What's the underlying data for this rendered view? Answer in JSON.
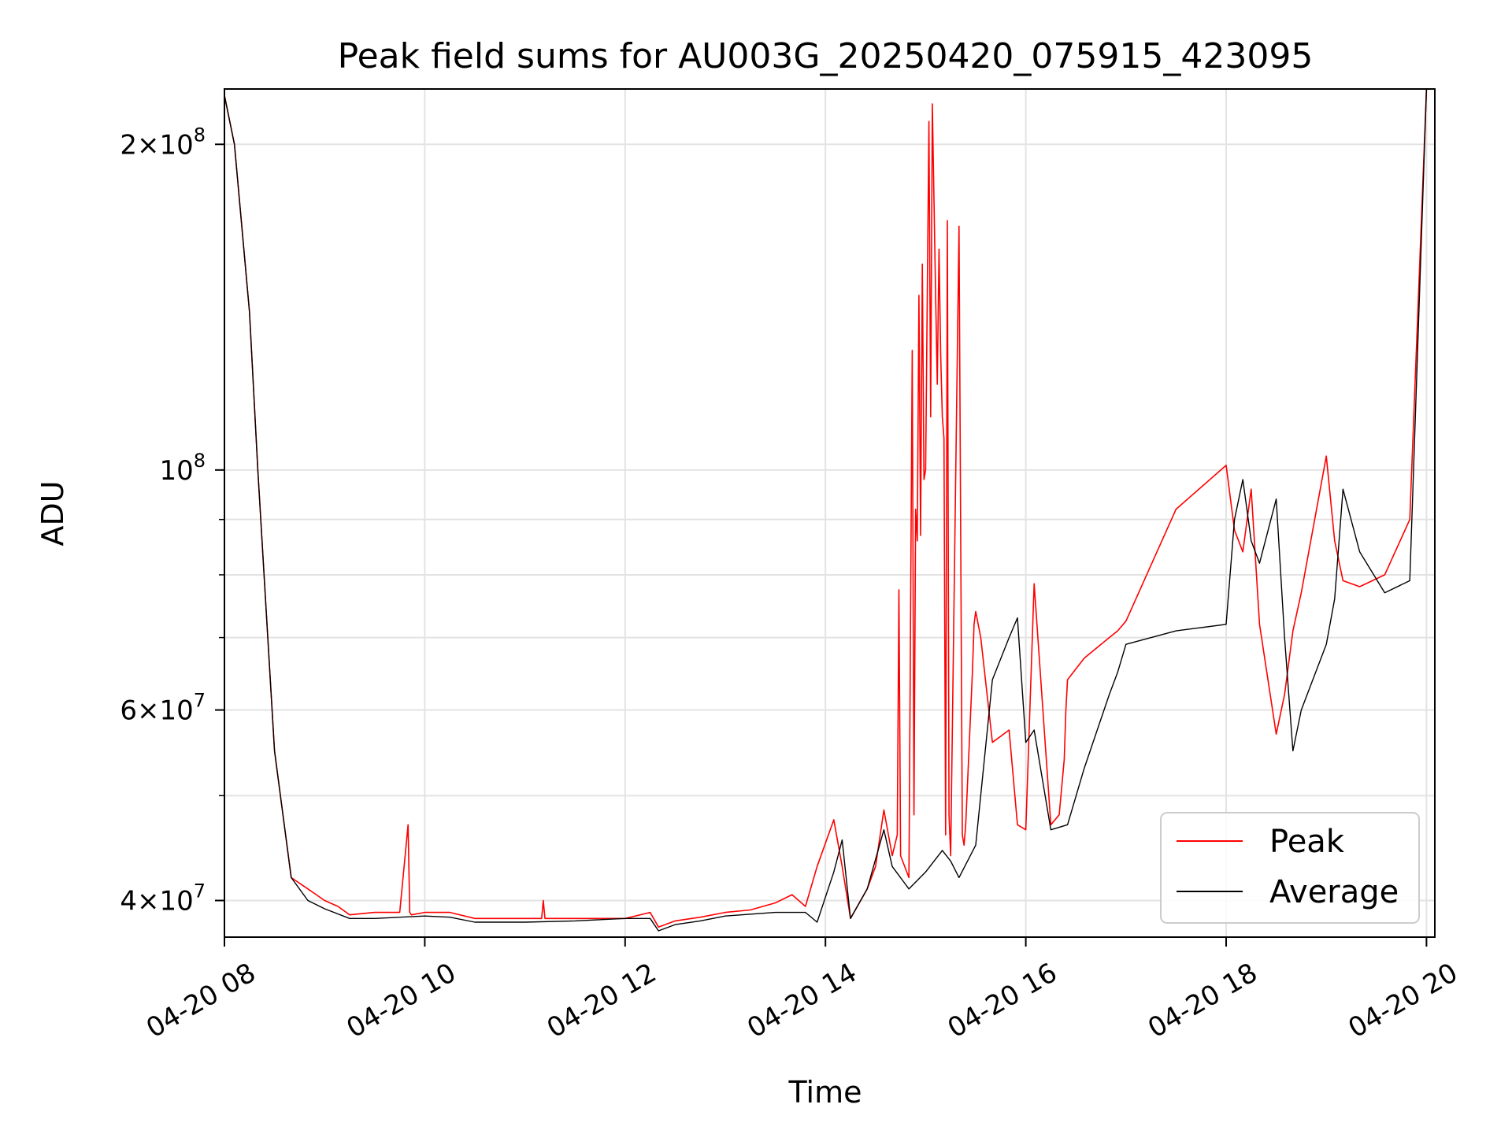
{
  "chart_data": {
    "type": "line",
    "title": "Peak field sums for AU003G_20250420_075915_423095",
    "xlabel": "Time",
    "ylabel": "ADU",
    "x_scale": "time",
    "y_scale": "log",
    "xlim": [
      "2025-04-20 08:00",
      "2025-04-20 20:05"
    ],
    "ylim": [
      37000000,
      225000000
    ],
    "grid": true,
    "legend_position": "lower right",
    "x_ticks": [
      {
        "value": "2025-04-20 08:00",
        "label": "04-20 08"
      },
      {
        "value": "2025-04-20 10:00",
        "label": "04-20 10"
      },
      {
        "value": "2025-04-20 12:00",
        "label": "04-20 12"
      },
      {
        "value": "2025-04-20 14:00",
        "label": "04-20 14"
      },
      {
        "value": "2025-04-20 16:00",
        "label": "04-20 16"
      },
      {
        "value": "2025-04-20 18:00",
        "label": "04-20 18"
      },
      {
        "value": "2025-04-20 20:00",
        "label": "04-20 20"
      }
    ],
    "y_major_ticks": [
      {
        "value": 40000000,
        "mantissa": "4",
        "exponent": "7"
      },
      {
        "value": 60000000,
        "mantissa": "6",
        "exponent": "7"
      },
      {
        "value": 100000000,
        "mantissa": "",
        "exponent": "8"
      },
      {
        "value": 200000000,
        "mantissa": "2",
        "exponent": "8"
      }
    ],
    "y_minor_ticks": [
      50000000,
      70000000,
      80000000,
      90000000
    ],
    "series": [
      {
        "name": "Peak",
        "color": "#ff0000",
        "x": [
          "2025-04-20 08:00",
          "2025-04-20 08:06",
          "2025-04-20 08:15",
          "2025-04-20 08:20",
          "2025-04-20 08:30",
          "2025-04-20 08:40",
          "2025-04-20 08:50",
          "2025-04-20 08:55",
          "2025-04-20 09:00",
          "2025-04-20 09:08",
          "2025-04-20 09:15",
          "2025-04-20 09:30",
          "2025-04-20 09:45",
          "2025-04-20 09:50",
          "2025-04-20 09:51",
          "2025-04-20 09:52",
          "2025-04-20 10:00",
          "2025-04-20 10:15",
          "2025-04-20 10:30",
          "2025-04-20 11:00",
          "2025-04-20 11:10",
          "2025-04-20 11:11",
          "2025-04-20 11:12",
          "2025-04-20 11:30",
          "2025-04-20 12:00",
          "2025-04-20 12:15",
          "2025-04-20 12:20",
          "2025-04-20 12:30",
          "2025-04-20 12:45",
          "2025-04-20 13:00",
          "2025-04-20 13:15",
          "2025-04-20 13:30",
          "2025-04-20 13:40",
          "2025-04-20 13:48",
          "2025-04-20 13:55",
          "2025-04-20 14:05",
          "2025-04-20 14:10",
          "2025-04-20 14:15",
          "2025-04-20 14:25",
          "2025-04-20 14:30",
          "2025-04-20 14:35",
          "2025-04-20 14:40",
          "2025-04-20 14:43",
          "2025-04-20 14:44",
          "2025-04-20 14:45",
          "2025-04-20 14:50",
          "2025-04-20 14:52",
          "2025-04-20 14:53",
          "2025-04-20 14:54",
          "2025-04-20 14:55",
          "2025-04-20 14:56",
          "2025-04-20 14:57",
          "2025-04-20 14:58",
          "2025-04-20 14:59",
          "2025-04-20 15:00",
          "2025-04-20 15:02",
          "2025-04-20 15:03",
          "2025-04-20 15:04",
          "2025-04-20 15:06",
          "2025-04-20 15:07",
          "2025-04-20 15:08",
          "2025-04-20 15:09",
          "2025-04-20 15:10",
          "2025-04-20 15:11",
          "2025-04-20 15:12",
          "2025-04-20 15:13",
          "2025-04-20 15:14",
          "2025-04-20 15:15",
          "2025-04-20 15:20",
          "2025-04-20 15:22",
          "2025-04-20 15:23",
          "2025-04-20 15:24",
          "2025-04-20 15:28",
          "2025-04-20 15:29",
          "2025-04-20 15:30",
          "2025-04-20 15:33",
          "2025-04-20 15:40",
          "2025-04-20 15:50",
          "2025-04-20 15:55",
          "2025-04-20 16:00",
          "2025-04-20 16:05",
          "2025-04-20 16:15",
          "2025-04-20 16:20",
          "2025-04-20 16:23",
          "2025-04-20 16:24",
          "2025-04-20 16:25",
          "2025-04-20 16:35",
          "2025-04-20 16:50",
          "2025-04-20 16:55",
          "2025-04-20 17:00",
          "2025-04-20 17:30",
          "2025-04-20 18:00",
          "2025-04-20 18:05",
          "2025-04-20 18:10",
          "2025-04-20 18:15",
          "2025-04-20 18:20",
          "2025-04-20 18:30",
          "2025-04-20 18:35",
          "2025-04-20 18:40",
          "2025-04-20 18:45",
          "2025-04-20 19:00",
          "2025-04-20 19:05",
          "2025-04-20 19:10",
          "2025-04-20 19:20",
          "2025-04-20 19:35",
          "2025-04-20 19:50",
          "2025-04-20 20:00"
        ],
        "values": [
          222000000,
          200000000,
          140000000,
          100000000,
          55000000,
          42000000,
          41000000,
          40500000,
          40000000,
          39500000,
          38800000,
          39000000,
          39000000,
          47000000,
          39000000,
          38800000,
          39000000,
          39000000,
          38500000,
          38500000,
          38500000,
          40000000,
          38500000,
          38500000,
          38500000,
          39000000,
          37800000,
          38300000,
          38600000,
          39000000,
          39200000,
          39800000,
          40500000,
          39500000,
          43000000,
          47500000,
          43000000,
          38500000,
          41000000,
          43000000,
          48500000,
          44000000,
          46000000,
          77500000,
          44000000,
          42000000,
          129000000,
          48000000,
          92000000,
          86000000,
          145000000,
          87000000,
          155000000,
          98000000,
          100000000,
          210000000,
          112000000,
          218000000,
          145000000,
          120000000,
          160000000,
          128000000,
          112000000,
          107000000,
          46000000,
          170000000,
          48000000,
          44000000,
          168000000,
          46000000,
          45000000,
          47000000,
          65000000,
          72000000,
          74000000,
          70000000,
          56000000,
          57500000,
          47000000,
          46500000,
          78500000,
          47000000,
          48000000,
          54000000,
          60000000,
          64000000,
          67000000,
          70000000,
          71000000,
          72500000,
          92000000,
          101000000,
          88000000,
          84000000,
          96000000,
          72000000,
          57000000,
          62000000,
          71000000,
          77000000,
          103000000,
          86000000,
          79000000,
          78000000,
          80000000,
          90000000,
          225000000
        ]
      },
      {
        "name": "Average",
        "color": "#000000",
        "x": [
          "2025-04-20 08:00",
          "2025-04-20 08:06",
          "2025-04-20 08:15",
          "2025-04-20 08:20",
          "2025-04-20 08:30",
          "2025-04-20 08:40",
          "2025-04-20 08:50",
          "2025-04-20 09:00",
          "2025-04-20 09:15",
          "2025-04-20 09:30",
          "2025-04-20 10:00",
          "2025-04-20 10:15",
          "2025-04-20 10:30",
          "2025-04-20 11:00",
          "2025-04-20 11:30",
          "2025-04-20 12:00",
          "2025-04-20 12:15",
          "2025-04-20 12:20",
          "2025-04-20 12:30",
          "2025-04-20 12:45",
          "2025-04-20 13:00",
          "2025-04-20 13:30",
          "2025-04-20 13:48",
          "2025-04-20 13:55",
          "2025-04-20 14:05",
          "2025-04-20 14:10",
          "2025-04-20 14:15",
          "2025-04-20 14:25",
          "2025-04-20 14:35",
          "2025-04-20 14:40",
          "2025-04-20 14:50",
          "2025-04-20 15:00",
          "2025-04-20 15:10",
          "2025-04-20 15:15",
          "2025-04-20 15:20",
          "2025-04-20 15:30",
          "2025-04-20 15:40",
          "2025-04-20 15:50",
          "2025-04-20 15:55",
          "2025-04-20 16:00",
          "2025-04-20 16:05",
          "2025-04-20 16:15",
          "2025-04-20 16:25",
          "2025-04-20 16:35",
          "2025-04-20 16:50",
          "2025-04-20 16:55",
          "2025-04-20 17:00",
          "2025-04-20 17:30",
          "2025-04-20 18:00",
          "2025-04-20 18:05",
          "2025-04-20 18:10",
          "2025-04-20 18:15",
          "2025-04-20 18:20",
          "2025-04-20 18:30",
          "2025-04-20 18:35",
          "2025-04-20 18:40",
          "2025-04-20 18:45",
          "2025-04-20 19:00",
          "2025-04-20 19:05",
          "2025-04-20 19:10",
          "2025-04-20 19:20",
          "2025-04-20 19:35",
          "2025-04-20 19:50",
          "2025-04-20 20:00"
        ],
        "values": [
          222000000,
          200000000,
          140000000,
          100000000,
          55000000,
          42000000,
          40000000,
          39300000,
          38500000,
          38500000,
          38700000,
          38600000,
          38200000,
          38200000,
          38300000,
          38500000,
          38500000,
          37500000,
          38000000,
          38300000,
          38700000,
          39000000,
          39000000,
          38200000,
          42500000,
          45500000,
          38500000,
          41000000,
          46500000,
          43000000,
          41000000,
          42500000,
          44500000,
          43500000,
          42000000,
          45000000,
          64000000,
          70000000,
          73000000,
          56000000,
          57500000,
          46500000,
          47000000,
          53000000,
          62000000,
          65000000,
          69000000,
          71000000,
          72000000,
          90000000,
          98000000,
          86000000,
          82000000,
          94000000,
          70000000,
          55000000,
          60000000,
          69000000,
          76000000,
          96000000,
          84000000,
          77000000,
          79000000,
          225000000
        ]
      }
    ]
  }
}
